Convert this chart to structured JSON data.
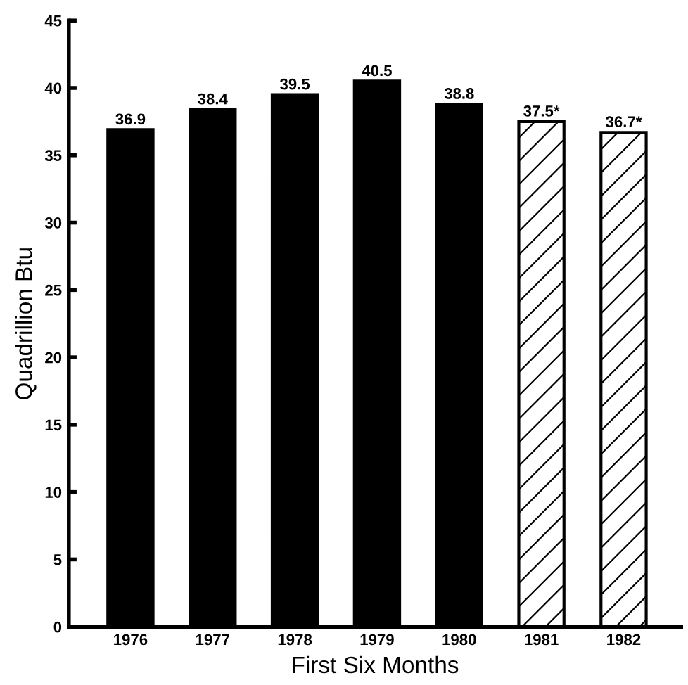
{
  "chart_data": {
    "type": "bar",
    "xlabel": "First Six Months",
    "ylabel": "Quadrillion Btu",
    "categories": [
      "1976",
      "1977",
      "1978",
      "1979",
      "1980",
      "1981",
      "1982"
    ],
    "values": [
      36.9,
      38.4,
      39.5,
      40.5,
      38.8,
      37.5,
      36.7
    ],
    "value_labels": [
      "36.9",
      "38.4",
      "39.5",
      "40.5",
      "38.8",
      "37.5*",
      "36.7*"
    ],
    "colors": [
      "#000000",
      "#000000",
      "#000000",
      "#000000",
      "#000000",
      "#ffffff",
      "#ffffff"
    ],
    "ylim": [
      0,
      45
    ],
    "yticks": [
      0,
      5,
      10,
      15,
      20,
      25,
      30,
      35,
      40,
      45
    ],
    "grid": false,
    "legend": false
  }
}
